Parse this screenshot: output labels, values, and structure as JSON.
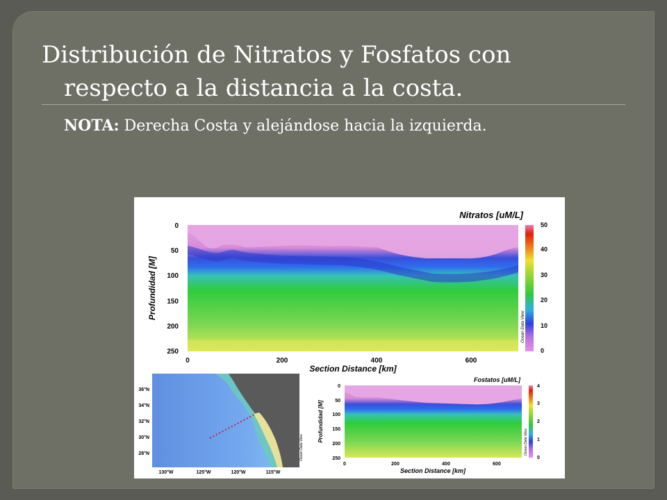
{
  "slide": {
    "title_line1": "Distribución de Nitratos y Fosfatos con",
    "title_line2": "respecto a la distancia a la costa.",
    "note_label": "NOTA:",
    "note_text": " Derecha Costa y alejándose hacia la izquierda."
  },
  "chart_data": [
    {
      "type": "heatmap",
      "title": "Nitratos [uM/L]",
      "xlabel": "Section Distance [km]",
      "ylabel": "Profundidad [M]",
      "xlim": [
        0,
        700
      ],
      "ylim": [
        250,
        0
      ],
      "xticks": [
        "0",
        "200",
        "400",
        "600"
      ],
      "yticks": [
        "0",
        "50",
        "100",
        "150",
        "200",
        "250"
      ],
      "colorbar": {
        "min": 0,
        "max": 50,
        "ticks": [
          "0",
          "10",
          "20",
          "30",
          "40",
          "50"
        ]
      },
      "watermark": "Ocean Data View",
      "colors": [
        "#e8a0e6",
        "#3a44e0",
        "#3ccc40",
        "#f0f040",
        "#f07a10",
        "#e01010"
      ]
    },
    {
      "type": "heatmap",
      "title": "Fostatos [uM/L]",
      "xlabel": "Section Distance [km]",
      "ylabel": "Profundidad [M]",
      "xlim": [
        0,
        700
      ],
      "ylim": [
        250,
        0
      ],
      "xticks": [
        "0",
        "200",
        "400",
        "600"
      ],
      "yticks": [
        "0",
        "50",
        "100",
        "150",
        "200",
        "250"
      ],
      "colorbar": {
        "min": 0,
        "max": 4,
        "ticks": [
          "0",
          "1",
          "2",
          "3",
          "4"
        ]
      },
      "watermark": "Ocean Data View"
    }
  ],
  "map": {
    "lat_labels": [
      "36°N",
      "34°N",
      "32°N",
      "30°N",
      "28°N"
    ],
    "lon_labels": [
      "130°W",
      "125°W",
      "120°W",
      "115°W"
    ],
    "watermark": "Ocean Data View"
  }
}
